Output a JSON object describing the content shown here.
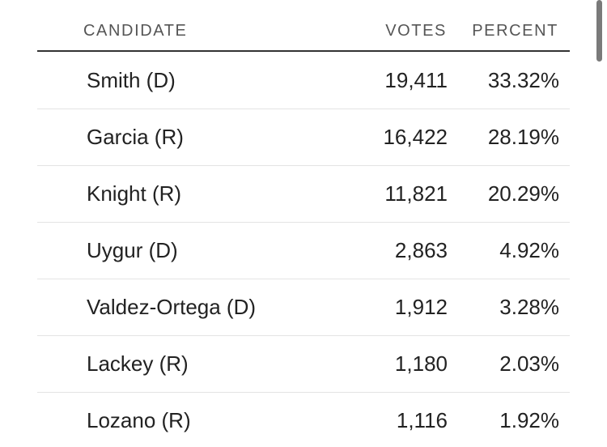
{
  "table": {
    "header": [
      "CANDIDATE",
      "VOTES",
      "PERCENT"
    ],
    "rows": [
      [
        "Smith (D)",
        "19,411",
        "33.32%"
      ],
      [
        "Garcia (R)",
        "16,422",
        "28.19%"
      ],
      [
        "Knight (R)",
        "11,821",
        "20.29%"
      ],
      [
        "Uygur (D)",
        "2,863",
        "4.92%"
      ],
      [
        "Valdez-Ortega (D)",
        "1,912",
        "3.28%"
      ],
      [
        "Lackey (R)",
        "1,180",
        "2.03%"
      ],
      [
        "Lozano (R)",
        "1,116",
        "1.92%"
      ]
    ]
  }
}
